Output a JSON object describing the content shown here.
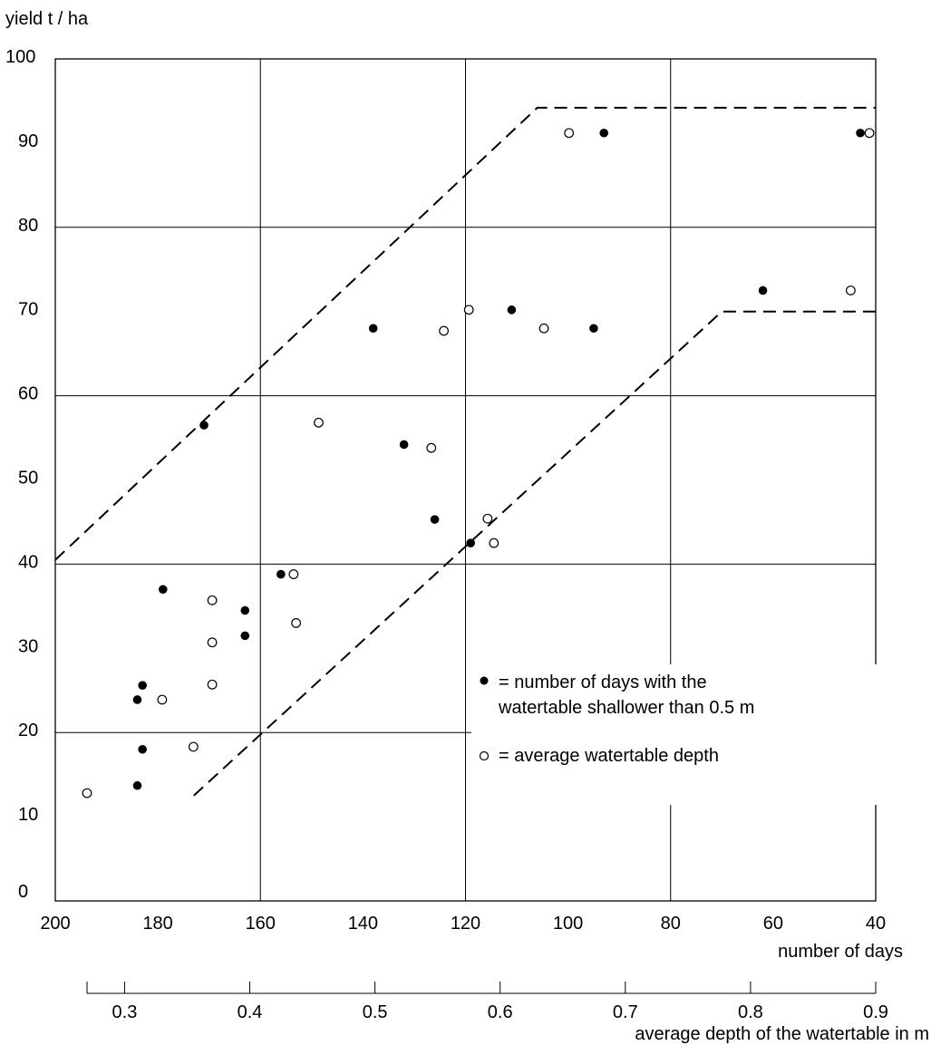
{
  "chart_data": {
    "type": "scatter",
    "ylabel": "yield t / ha",
    "xlabel": "number of days",
    "x2label": "average depth of the watertable in m",
    "ylim": [
      0,
      100
    ],
    "yticks": [
      0,
      10,
      20,
      30,
      40,
      50,
      60,
      70,
      80,
      90,
      100
    ],
    "xlim": [
      200,
      40
    ],
    "xticks": [
      200,
      180,
      160,
      140,
      120,
      100,
      80,
      60,
      40
    ],
    "x2lim": [
      0.27,
      0.9
    ],
    "x2ticks": [
      0.3,
      0.4,
      0.5,
      0.6,
      0.7,
      0.8,
      0.9
    ],
    "x2ticklabels": [
      "0.3",
      "0.4",
      "0.5",
      "0.6",
      "0.7",
      "0.8",
      "0.9"
    ],
    "grid": true,
    "legend_position": "lower-right",
    "series": [
      {
        "name": "number of days with the watertable shallower than 0.5 m",
        "legend_text": [
          "= number of days with the",
          "watertable shallower than 0.5 m"
        ],
        "marker": "filled",
        "axis": "days",
        "points": [
          {
            "x": 184,
            "y": 13.7
          },
          {
            "x": 183,
            "y": 18.0
          },
          {
            "x": 184,
            "y": 23.9
          },
          {
            "x": 183,
            "y": 25.6
          },
          {
            "x": 179,
            "y": 37.0
          },
          {
            "x": 171,
            "y": 56.5
          },
          {
            "x": 163,
            "y": 34.5
          },
          {
            "x": 163,
            "y": 31.5
          },
          {
            "x": 156,
            "y": 38.8
          },
          {
            "x": 138,
            "y": 68.0
          },
          {
            "x": 132,
            "y": 54.2
          },
          {
            "x": 126,
            "y": 45.3
          },
          {
            "x": 119,
            "y": 42.5
          },
          {
            "x": 111,
            "y": 70.2
          },
          {
            "x": 95,
            "y": 68.0
          },
          {
            "x": 93,
            "y": 91.2
          },
          {
            "x": 62,
            "y": 72.5
          },
          {
            "x": 43,
            "y": 91.2
          }
        ]
      },
      {
        "name": "average watertable depth",
        "legend_text": [
          "= average watertable depth"
        ],
        "marker": "open",
        "axis": "depth",
        "points": [
          {
            "x": 0.27,
            "y": 12.8
          },
          {
            "x": 0.33,
            "y": 23.9
          },
          {
            "x": 0.355,
            "y": 18.3
          },
          {
            "x": 0.37,
            "y": 35.7
          },
          {
            "x": 0.37,
            "y": 30.7
          },
          {
            "x": 0.37,
            "y": 25.7
          },
          {
            "x": 0.435,
            "y": 38.8
          },
          {
            "x": 0.437,
            "y": 33.0
          },
          {
            "x": 0.455,
            "y": 56.8
          },
          {
            "x": 0.545,
            "y": 53.8
          },
          {
            "x": 0.555,
            "y": 67.7
          },
          {
            "x": 0.575,
            "y": 70.2
          },
          {
            "x": 0.59,
            "y": 45.4
          },
          {
            "x": 0.595,
            "y": 42.5
          },
          {
            "x": 0.635,
            "y": 68.0
          },
          {
            "x": 0.655,
            "y": 91.2
          },
          {
            "x": 0.88,
            "y": 72.5
          },
          {
            "x": 0.895,
            "y": 91.2
          }
        ]
      }
    ],
    "envelope_lines": [
      {
        "name": "upper envelope",
        "style": "dashed",
        "points": [
          {
            "x": 200,
            "y": 40.5
          },
          {
            "x": 106,
            "y": 94.2
          },
          {
            "x": 40,
            "y": 94.2
          }
        ]
      },
      {
        "name": "lower envelope",
        "style": "dashed",
        "points": [
          {
            "x": 173,
            "y": 12.5
          },
          {
            "x": 70,
            "y": 70.0
          },
          {
            "x": 40,
            "y": 70.0
          }
        ]
      }
    ]
  }
}
